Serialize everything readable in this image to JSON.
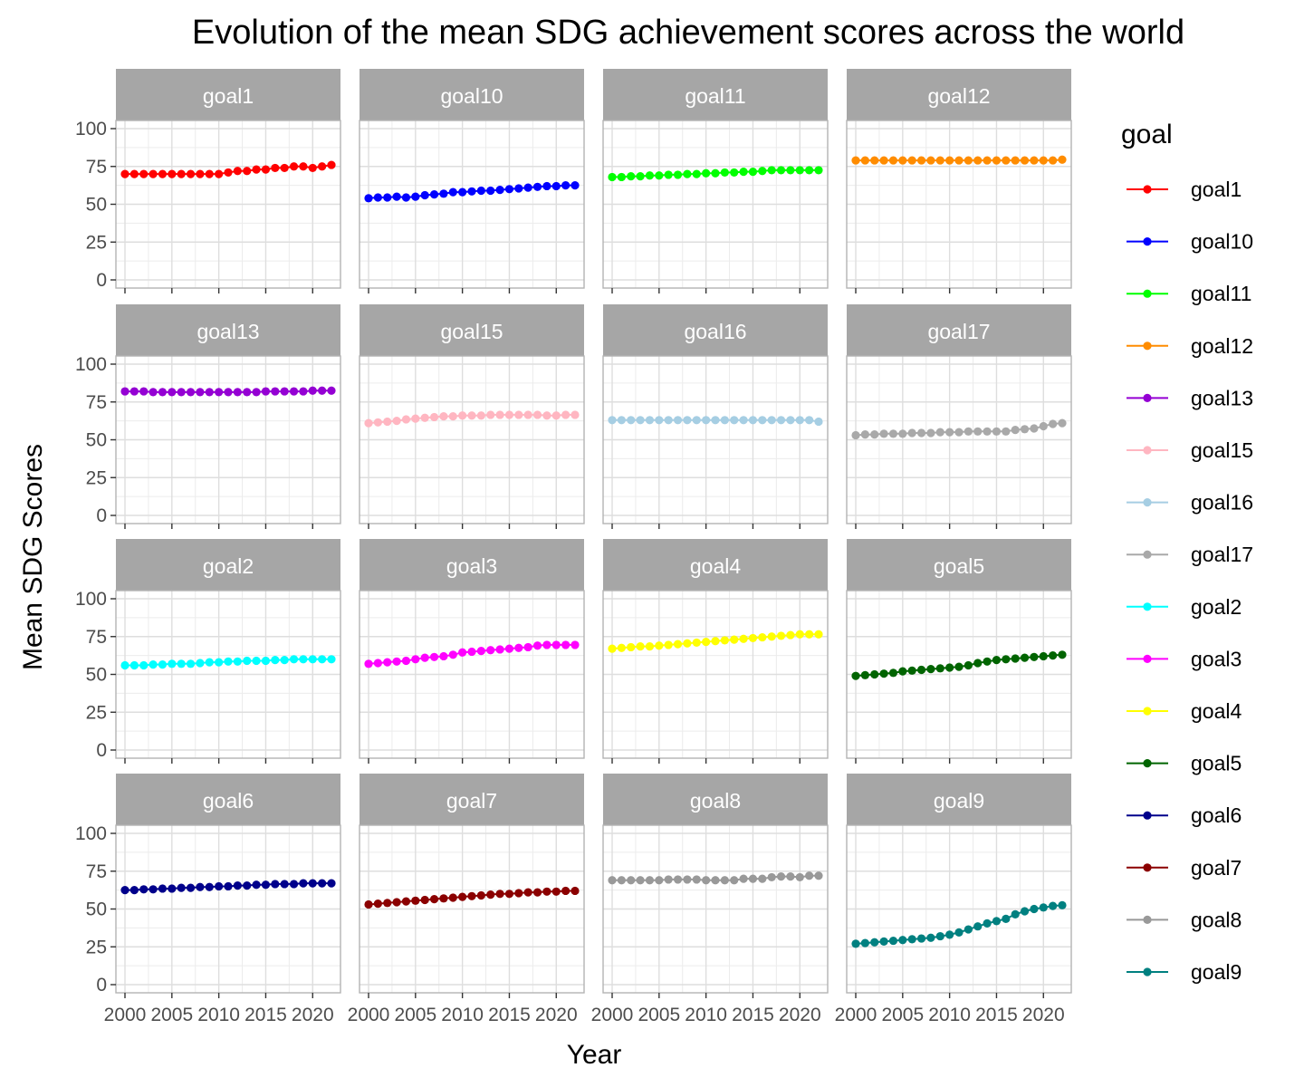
{
  "chart_data": {
    "type": "line",
    "title": "Evolution of the mean SDG achievement scores across the world",
    "xlabel": "Year",
    "ylabel": "Mean SDG Scores",
    "legend_title": "goal",
    "legend_position": "right",
    "grid": true,
    "xlim": [
      2000,
      2022
    ],
    "ylim": [
      0,
      100
    ],
    "x_ticks": [
      2000,
      2005,
      2010,
      2015,
      2020
    ],
    "y_ticks": [
      0,
      25,
      50,
      75,
      100
    ],
    "x": [
      2000,
      2001,
      2002,
      2003,
      2004,
      2005,
      2006,
      2007,
      2008,
      2009,
      2010,
      2011,
      2012,
      2013,
      2014,
      2015,
      2016,
      2017,
      2018,
      2019,
      2020,
      2021,
      2022
    ],
    "series": [
      {
        "name": "goal1",
        "color": "#ff0000",
        "values": [
          70,
          70,
          70,
          70,
          70,
          70,
          70,
          70,
          70,
          70,
          70,
          71,
          72,
          72,
          73,
          73,
          74,
          74,
          75,
          75,
          74,
          75,
          76
        ]
      },
      {
        "name": "goal10",
        "color": "#0000ff",
        "values": [
          54,
          54.5,
          54.5,
          55,
          54.5,
          55,
          56,
          56.5,
          57,
          58,
          58,
          58.5,
          59,
          59,
          59.5,
          60,
          60.5,
          61,
          61.5,
          62,
          62,
          62.5,
          62.5
        ]
      },
      {
        "name": "goal11",
        "color": "#00ff00",
        "values": [
          68,
          68,
          68.5,
          68.5,
          69,
          69,
          69.5,
          69.5,
          70,
          70,
          70.5,
          70.5,
          71,
          71,
          71.5,
          71.5,
          72,
          72.5,
          72.5,
          72.5,
          72.5,
          72.5,
          72.5
        ]
      },
      {
        "name": "goal12",
        "color": "#ff8c00",
        "values": [
          79,
          79,
          79,
          79,
          79,
          79,
          79,
          79,
          79,
          79,
          79,
          79,
          79,
          79,
          79,
          79,
          79,
          79,
          79,
          79,
          79,
          79,
          79.5
        ]
      },
      {
        "name": "goal13",
        "color": "#9400d3",
        "values": [
          82,
          82,
          82,
          81.5,
          81.5,
          81.5,
          81.5,
          81.5,
          81.5,
          81.5,
          81.5,
          81.5,
          81.5,
          81.5,
          81.5,
          82,
          82,
          82,
          82,
          82,
          82.5,
          82.5,
          82.5
        ]
      },
      {
        "name": "goal15",
        "color": "#ffb6c1",
        "values": [
          61,
          61.5,
          62,
          62.5,
          63.5,
          64,
          64.5,
          65,
          65.5,
          65.5,
          66,
          66,
          66,
          66.5,
          66.5,
          66.5,
          66.5,
          66.5,
          66.5,
          66,
          66,
          66.5,
          66.5
        ]
      },
      {
        "name": "goal16",
        "color": "#a6cee3",
        "values": [
          63,
          63,
          63,
          63,
          63,
          63,
          63,
          63,
          63,
          63,
          63,
          63,
          63,
          63,
          63,
          63,
          63,
          63,
          63,
          63,
          63,
          63,
          62
        ]
      },
      {
        "name": "goal17",
        "color": "#a9a9a9",
        "values": [
          53,
          53.5,
          53.5,
          54,
          54,
          54,
          54.5,
          54.5,
          54.5,
          55,
          55,
          55,
          55.5,
          55.5,
          55.5,
          55.5,
          55.5,
          56.5,
          57,
          57.5,
          59,
          60.5,
          61
        ]
      },
      {
        "name": "goal2",
        "color": "#00ffff",
        "values": [
          56,
          56,
          56,
          56.5,
          56.5,
          57,
          57,
          57,
          57.5,
          58,
          58,
          58.5,
          58.5,
          59,
          59,
          59,
          59.5,
          59.5,
          60,
          60,
          60,
          60,
          60
        ]
      },
      {
        "name": "goal3",
        "color": "#ff00ff",
        "values": [
          57,
          57.5,
          58,
          58.5,
          59,
          60,
          61,
          61.5,
          62,
          63,
          64.5,
          65,
          65.5,
          66,
          66.5,
          67,
          67.5,
          68,
          69,
          69.5,
          69.5,
          69.5,
          69.5
        ]
      },
      {
        "name": "goal4",
        "color": "#ffff00",
        "values": [
          67,
          67.5,
          68,
          68.5,
          68.5,
          69,
          69.5,
          70,
          70.5,
          71,
          71.5,
          72,
          72.5,
          73,
          73.5,
          74,
          74.5,
          75,
          75.5,
          76,
          76.5,
          76.5,
          76.5
        ]
      },
      {
        "name": "goal5",
        "color": "#006400",
        "values": [
          49,
          49.5,
          50,
          50.5,
          51,
          52,
          52.5,
          53,
          53.5,
          54,
          54.5,
          55,
          56,
          57.5,
          58.5,
          59.5,
          60,
          60.5,
          61,
          61.5,
          62,
          62.5,
          63
        ]
      },
      {
        "name": "goal6",
        "color": "#00008b",
        "values": [
          62.5,
          62.5,
          63,
          63,
          63.5,
          63.5,
          64,
          64,
          64.5,
          64.5,
          65,
          65,
          65.5,
          65.5,
          66,
          66,
          66.5,
          66.5,
          66.5,
          67,
          67,
          67,
          67
        ]
      },
      {
        "name": "goal7",
        "color": "#8b0000",
        "values": [
          53,
          53.5,
          54,
          54.5,
          55,
          55.5,
          56,
          56.5,
          57,
          57.5,
          58,
          58.5,
          59,
          59.5,
          60,
          60,
          60.5,
          61,
          61,
          61.5,
          61.5,
          62,
          62
        ]
      },
      {
        "name": "goal8",
        "color": "#999999",
        "values": [
          69,
          69,
          69,
          69,
          69,
          69,
          69.5,
          69.5,
          69.5,
          69.5,
          69,
          69,
          69,
          69,
          70,
          70,
          70,
          71,
          71.5,
          71.5,
          71,
          72,
          72
        ]
      },
      {
        "name": "goal9",
        "color": "#008080",
        "values": [
          27,
          27.5,
          28,
          28.5,
          29,
          29.5,
          30,
          30.5,
          31,
          32,
          33,
          34.5,
          36.5,
          38.5,
          40.5,
          42,
          43.5,
          46.5,
          48.5,
          50,
          51,
          52,
          52.5
        ]
      }
    ]
  }
}
